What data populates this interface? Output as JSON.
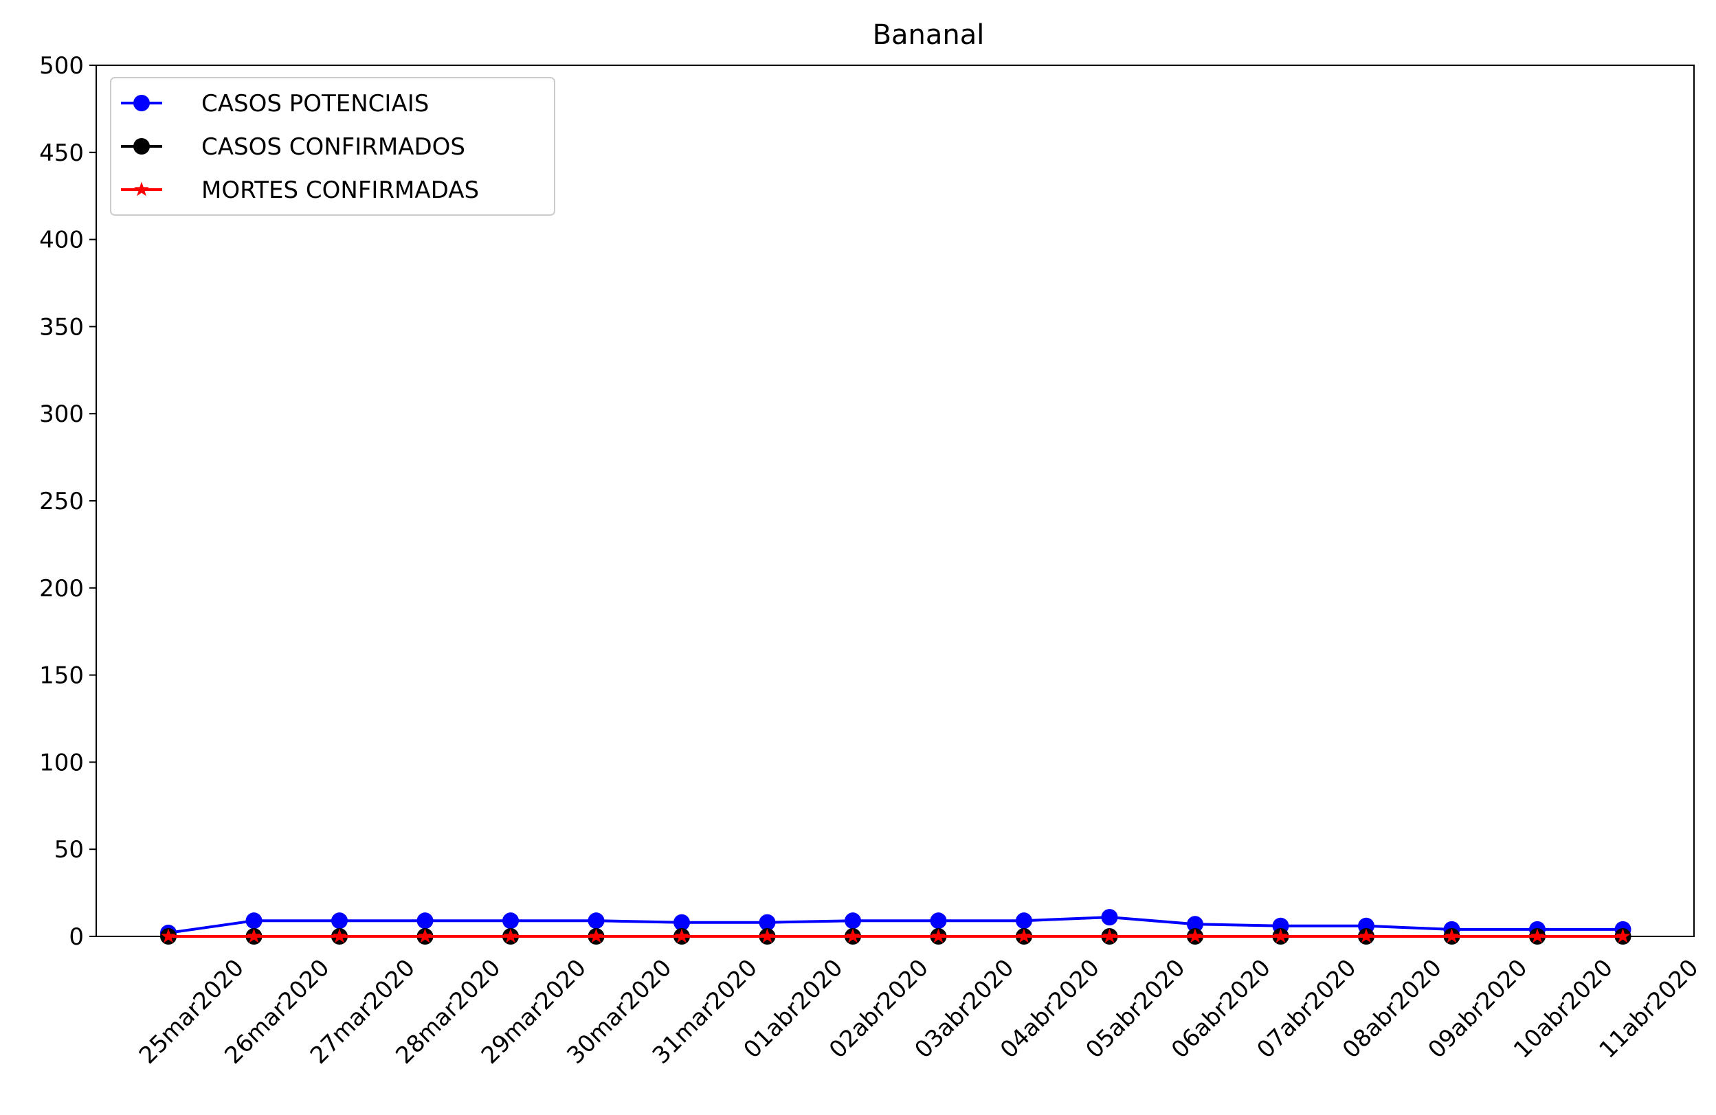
{
  "chart_data": {
    "type": "line",
    "title": "Bananal",
    "xlabel": "",
    "ylabel": "",
    "categories": [
      "25mar2020",
      "26mar2020",
      "27mar2020",
      "28mar2020",
      "29mar2020",
      "30mar2020",
      "31mar2020",
      "01abr2020",
      "02abr2020",
      "03abr2020",
      "04abr2020",
      "05abr2020",
      "06abr2020",
      "07abr2020",
      "08abr2020",
      "09abr2020",
      "10abr2020",
      "11abr2020"
    ],
    "ylim": [
      0,
      500
    ],
    "yticks": [
      0,
      50,
      100,
      150,
      200,
      250,
      300,
      350,
      400,
      450,
      500
    ],
    "grid": false,
    "legend_position": "upper-left",
    "series": [
      {
        "name": "CASOS POTENCIAIS",
        "color": "#0000ff",
        "marker": "circle",
        "values": [
          2,
          9,
          9,
          9,
          9,
          9,
          8,
          8,
          9,
          9,
          9,
          11,
          7,
          6,
          6,
          4,
          4,
          4
        ]
      },
      {
        "name": "CASOS CONFIRMADOS",
        "color": "#000000",
        "marker": "circle",
        "values": [
          0,
          0,
          0,
          0,
          0,
          0,
          0,
          0,
          0,
          0,
          0,
          0,
          0,
          0,
          0,
          0,
          0,
          0
        ]
      },
      {
        "name": "MORTES CONFIRMADAS",
        "color": "#ff0000",
        "marker": "star",
        "values": [
          0,
          0,
          0,
          0,
          0,
          0,
          0,
          0,
          0,
          0,
          0,
          0,
          0,
          0,
          0,
          0,
          0,
          0
        ]
      }
    ]
  }
}
